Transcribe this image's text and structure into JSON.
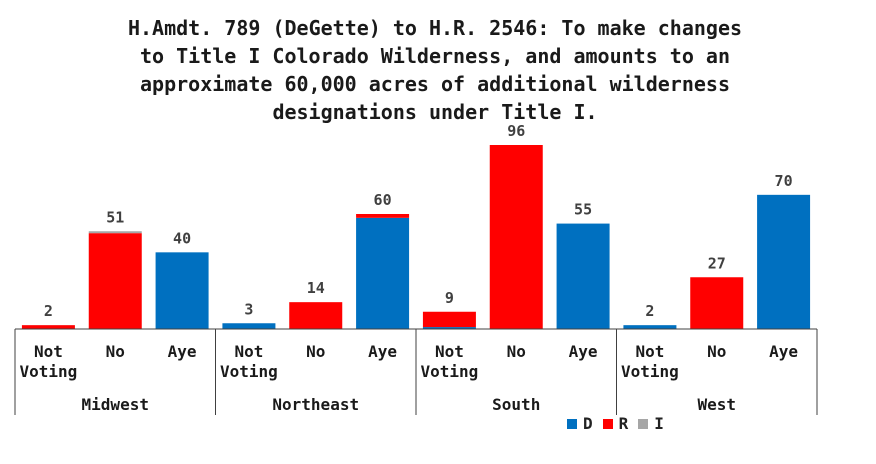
{
  "chart_data": {
    "type": "bar",
    "stacked": true,
    "title": "H.Amdt. 789 (DeGette) to H.R. 2546: To make changes\nto Title I Colorado Wilderness, and amounts to an\napproximate 60,000 acres of additional wilderness\ndesignations under Title I.",
    "groups": [
      {
        "name": "Midwest",
        "bars": [
          {
            "category": "Not\nVoting",
            "total": 2,
            "D": 0,
            "R": 2,
            "I": 0
          },
          {
            "category": "No",
            "total": 51,
            "D": 0,
            "R": 50,
            "I": 1
          },
          {
            "category": "Aye",
            "total": 40,
            "D": 40,
            "R": 0,
            "I": 0
          }
        ]
      },
      {
        "name": "Northeast",
        "bars": [
          {
            "category": "Not\nVoting",
            "total": 3,
            "D": 3,
            "R": 0,
            "I": 0
          },
          {
            "category": "No",
            "total": 14,
            "D": 0,
            "R": 14,
            "I": 0
          },
          {
            "category": "Aye",
            "total": 60,
            "D": 58,
            "R": 2,
            "I": 0
          }
        ]
      },
      {
        "name": "South",
        "bars": [
          {
            "category": "Not\nVoting",
            "total": 9,
            "D": 1,
            "R": 8,
            "I": 0
          },
          {
            "category": "No",
            "total": 96,
            "D": 0,
            "R": 96,
            "I": 0
          },
          {
            "category": "Aye",
            "total": 55,
            "D": 55,
            "R": 0,
            "I": 0
          }
        ]
      },
      {
        "name": "West",
        "bars": [
          {
            "category": "Not\nVoting",
            "total": 2,
            "D": 2,
            "R": 0,
            "I": 0
          },
          {
            "category": "No",
            "total": 27,
            "D": 0,
            "R": 27,
            "I": 0
          },
          {
            "category": "Aye",
            "total": 70,
            "D": 70,
            "R": 0,
            "I": 0
          }
        ]
      }
    ],
    "ylim": [
      0,
      96
    ],
    "grid": false,
    "legend": {
      "position": "bottom-right",
      "entries": [
        {
          "label": "D",
          "color": "#0070C0"
        },
        {
          "label": "R",
          "color": "#FF0000"
        },
        {
          "label": "I",
          "color": "#A6A6A6"
        }
      ]
    }
  }
}
